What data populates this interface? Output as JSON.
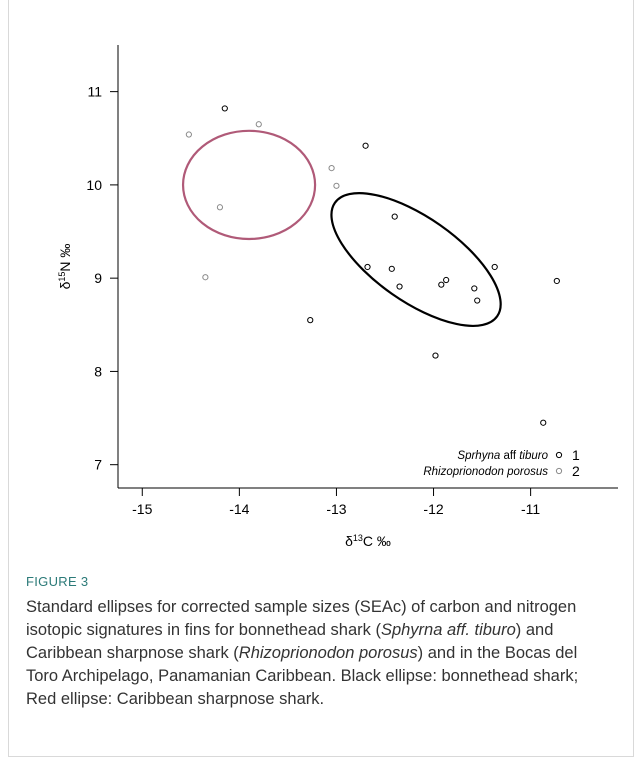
{
  "chart_data": {
    "type": "scatter",
    "xlabel": "δ13C ‰",
    "ylabel": "δ15N ‰",
    "xlim": [
      -15.25,
      -10.1
    ],
    "ylim": [
      6.75,
      11.5
    ],
    "xticks": [
      -15,
      -14,
      -13,
      -12,
      -11
    ],
    "yticks": [
      7,
      8,
      9,
      10,
      11
    ],
    "grid": false,
    "legend_position": "bottom-right",
    "series": [
      {
        "name": "Sprhyna aff tiburo",
        "legend_number": "1",
        "color": "#000000",
        "points": [
          {
            "x": -14.15,
            "y": 10.82
          },
          {
            "x": -12.7,
            "y": 10.42
          },
          {
            "x": -12.4,
            "y": 9.66
          },
          {
            "x": -12.68,
            "y": 9.12
          },
          {
            "x": -12.43,
            "y": 9.1
          },
          {
            "x": -12.35,
            "y": 8.91
          },
          {
            "x": -11.92,
            "y": 8.93
          },
          {
            "x": -11.87,
            "y": 8.98
          },
          {
            "x": -11.58,
            "y": 8.89
          },
          {
            "x": -11.55,
            "y": 8.76
          },
          {
            "x": -11.37,
            "y": 9.12
          },
          {
            "x": -10.73,
            "y": 8.97
          },
          {
            "x": -13.27,
            "y": 8.55
          },
          {
            "x": -11.98,
            "y": 8.17
          },
          {
            "x": -10.87,
            "y": 7.45
          }
        ],
        "ellipse": {
          "cx": -12.18,
          "cy": 9.2,
          "rx": 1.02,
          "ry": 0.45,
          "rotation_deg": 35,
          "color": "#000000"
        }
      },
      {
        "name": "Rhizoprionodon porosus",
        "legend_number": "2",
        "color": "#8a8a8a",
        "points": [
          {
            "x": -14.52,
            "y": 10.54
          },
          {
            "x": -13.8,
            "y": 10.65
          },
          {
            "x": -13.05,
            "y": 10.18
          },
          {
            "x": -13.0,
            "y": 9.99
          },
          {
            "x": -14.2,
            "y": 9.76
          },
          {
            "x": -14.35,
            "y": 9.01
          }
        ],
        "ellipse": {
          "cx": -13.9,
          "cy": 10.0,
          "rx": 0.68,
          "ry": 0.58,
          "rotation_deg": 0,
          "color": "#b05a78"
        }
      }
    ]
  },
  "caption": {
    "label": "FIGURE 3",
    "text_1": "Standard ellipses for corrected sample sizes (SEAc) of carbon and nitrogen isotopic signatures in fins for bonnethead shark (",
    "italic_1": "Sphyrna aff. tiburo",
    "text_2": ") and Caribbean sharpnose shark (",
    "italic_2": "Rhizoprionodon porosus",
    "text_3": ") and in the Bocas del Toro Archipelago, Panamanian Caribbean. Black ellipse: bonnethead shark; Red ellipse: Caribbean sharpnose shark."
  }
}
